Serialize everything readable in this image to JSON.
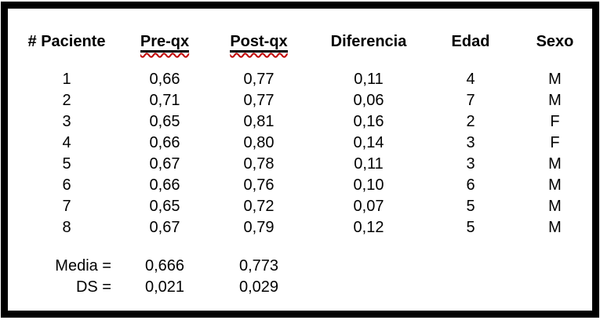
{
  "page": {
    "background": "#ffffff"
  },
  "colors": {
    "text": "#000000",
    "frame_border": "#000000",
    "header_underline": "#000000",
    "spellcheck_underline": "#c00000"
  },
  "table": {
    "headers": [
      "# Paciente",
      "Pre-qx",
      "Post-qx",
      "Diferencia",
      "Edad",
      "Sexo"
    ],
    "misspelled_headers": [
      "Pre-qx",
      "Post-qx"
    ],
    "rows": [
      [
        "1",
        "0,66",
        "0,77",
        "0,11",
        "4",
        "M"
      ],
      [
        "2",
        "0,71",
        "0,77",
        "0,06",
        "7",
        "M"
      ],
      [
        "3",
        "0,65",
        "0,81",
        "0,16",
        "2",
        "F"
      ],
      [
        "4",
        "0,66",
        "0,80",
        "0,14",
        "3",
        "F"
      ],
      [
        "5",
        "0,67",
        "0,78",
        "0,11",
        "3",
        "M"
      ],
      [
        "6",
        "0,66",
        "0,76",
        "0,10",
        "6",
        "M"
      ],
      [
        "7",
        "0,65",
        "0,72",
        "0,07",
        "5",
        "M"
      ],
      [
        "8",
        "0,67",
        "0,79",
        "0,12",
        "5",
        "M"
      ]
    ],
    "summary_rows": [
      {
        "label": "Media =",
        "pre_qx": "0,666",
        "post_qx": "0,773"
      },
      {
        "label": "DS =",
        "pre_qx": "0,021",
        "post_qx": "0,029"
      }
    ]
  }
}
